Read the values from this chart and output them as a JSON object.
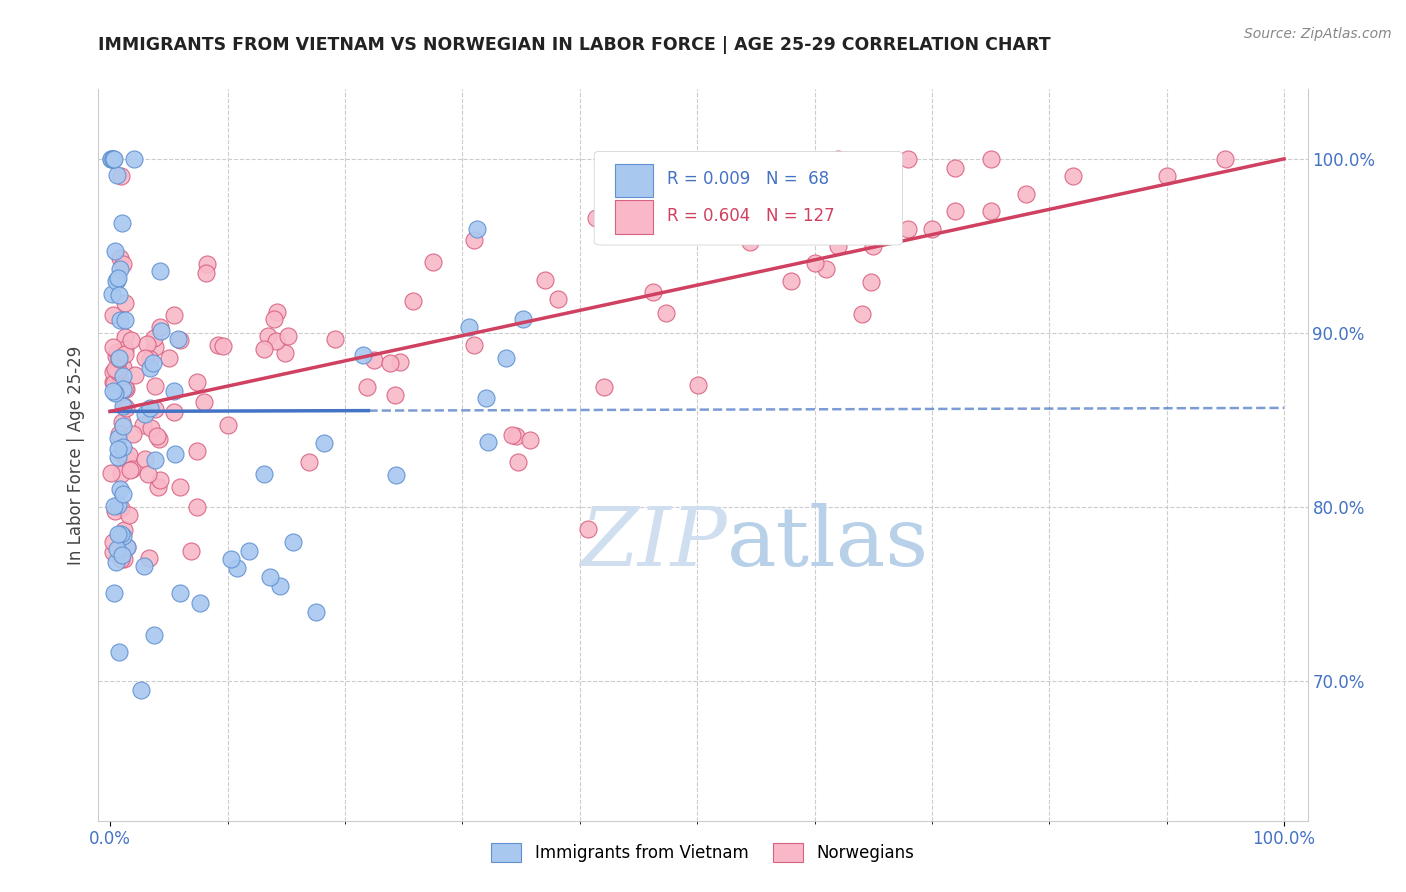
{
  "title": "IMMIGRANTS FROM VIETNAM VS NORWEGIAN IN LABOR FORCE | AGE 25-29 CORRELATION CHART",
  "source": "Source: ZipAtlas.com",
  "ylabel": "In Labor Force | Age 25-29",
  "legend_vietnam": "Immigrants from Vietnam",
  "legend_norwegian": "Norwegians",
  "R_vietnam": "0.009",
  "N_vietnam": "68",
  "R_norwegian": "0.604",
  "N_norwegian": "127",
  "color_vietnam_fill": "#a8c8f0",
  "color_vietnam_edge": "#6090d0",
  "color_norwegian_fill": "#f8b8c8",
  "color_norwegian_edge": "#d86080",
  "color_trend_vietnam": "#4472c4",
  "color_trend_norwegian": "#d04060",
  "color_axes_labels": "#4472c4",
  "color_grid": "#cccccc",
  "background_color": "#ffffff",
  "watermark_color": "#d0dff0",
  "xlim": [
    0.0,
    1.0
  ],
  "ylim": [
    0.62,
    1.04
  ],
  "yticks": [
    0.7,
    0.8,
    0.9,
    1.0
  ],
  "ytick_labels": [
    "70.0%",
    "80.0%",
    "90.0%",
    "100.0%"
  ],
  "xtick_left_label": "0.0%",
  "xtick_right_label": "100.0%"
}
